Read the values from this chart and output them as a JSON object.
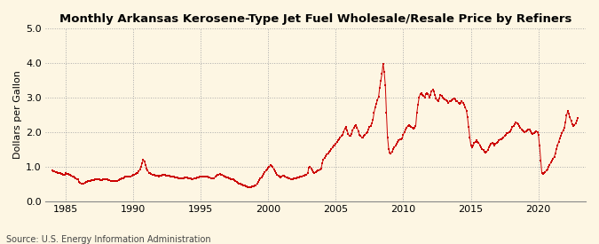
{
  "title": "Monthly Arkansas Kerosene-Type Jet Fuel Wholesale/Resale Price by Refiners",
  "ylabel": "Dollars per Gallon",
  "source": "Source: U.S. Energy Information Administration",
  "background_color": "#fdf6e3",
  "marker_color": "#cc0000",
  "line_color": "#cc0000",
  "xlim": [
    1983.5,
    2023.5
  ],
  "ylim": [
    0.0,
    5.0
  ],
  "yticks": [
    0.0,
    1.0,
    2.0,
    3.0,
    4.0,
    5.0
  ],
  "xticks": [
    1985,
    1990,
    1995,
    2000,
    2005,
    2010,
    2015,
    2020
  ],
  "data": [
    [
      1984.0,
      0.88
    ],
    [
      1984.08,
      0.86
    ],
    [
      1984.17,
      0.85
    ],
    [
      1984.25,
      0.84
    ],
    [
      1984.33,
      0.83
    ],
    [
      1984.42,
      0.82
    ],
    [
      1984.5,
      0.81
    ],
    [
      1984.58,
      0.8
    ],
    [
      1984.67,
      0.79
    ],
    [
      1984.75,
      0.78
    ],
    [
      1984.83,
      0.77
    ],
    [
      1984.92,
      0.76
    ],
    [
      1985.0,
      0.8
    ],
    [
      1985.08,
      0.79
    ],
    [
      1985.17,
      0.78
    ],
    [
      1985.25,
      0.77
    ],
    [
      1985.33,
      0.76
    ],
    [
      1985.42,
      0.74
    ],
    [
      1985.5,
      0.72
    ],
    [
      1985.58,
      0.7
    ],
    [
      1985.67,
      0.68
    ],
    [
      1985.75,
      0.66
    ],
    [
      1985.83,
      0.64
    ],
    [
      1985.92,
      0.63
    ],
    [
      1986.0,
      0.55
    ],
    [
      1986.08,
      0.52
    ],
    [
      1986.17,
      0.5
    ],
    [
      1986.25,
      0.5
    ],
    [
      1986.33,
      0.51
    ],
    [
      1986.42,
      0.53
    ],
    [
      1986.5,
      0.55
    ],
    [
      1986.58,
      0.56
    ],
    [
      1986.67,
      0.57
    ],
    [
      1986.75,
      0.58
    ],
    [
      1986.83,
      0.59
    ],
    [
      1986.92,
      0.6
    ],
    [
      1987.0,
      0.6
    ],
    [
      1987.08,
      0.61
    ],
    [
      1987.17,
      0.62
    ],
    [
      1987.25,
      0.63
    ],
    [
      1987.33,
      0.63
    ],
    [
      1987.42,
      0.62
    ],
    [
      1987.5,
      0.62
    ],
    [
      1987.58,
      0.61
    ],
    [
      1987.67,
      0.61
    ],
    [
      1987.75,
      0.62
    ],
    [
      1987.83,
      0.63
    ],
    [
      1987.92,
      0.64
    ],
    [
      1988.0,
      0.63
    ],
    [
      1988.08,
      0.62
    ],
    [
      1988.17,
      0.61
    ],
    [
      1988.25,
      0.6
    ],
    [
      1988.33,
      0.59
    ],
    [
      1988.42,
      0.58
    ],
    [
      1988.5,
      0.57
    ],
    [
      1988.58,
      0.57
    ],
    [
      1988.67,
      0.57
    ],
    [
      1988.75,
      0.58
    ],
    [
      1988.83,
      0.59
    ],
    [
      1988.92,
      0.61
    ],
    [
      1989.0,
      0.62
    ],
    [
      1989.08,
      0.64
    ],
    [
      1989.17,
      0.65
    ],
    [
      1989.25,
      0.67
    ],
    [
      1989.33,
      0.68
    ],
    [
      1989.42,
      0.7
    ],
    [
      1989.5,
      0.72
    ],
    [
      1989.58,
      0.72
    ],
    [
      1989.67,
      0.71
    ],
    [
      1989.75,
      0.7
    ],
    [
      1989.83,
      0.71
    ],
    [
      1989.92,
      0.73
    ],
    [
      1990.0,
      0.75
    ],
    [
      1990.08,
      0.76
    ],
    [
      1990.17,
      0.78
    ],
    [
      1990.25,
      0.8
    ],
    [
      1990.33,
      0.82
    ],
    [
      1990.42,
      0.87
    ],
    [
      1990.5,
      0.92
    ],
    [
      1990.58,
      1.0
    ],
    [
      1990.67,
      1.1
    ],
    [
      1990.75,
      1.2
    ],
    [
      1990.83,
      1.15
    ],
    [
      1990.92,
      1.05
    ],
    [
      1991.0,
      0.95
    ],
    [
      1991.08,
      0.88
    ],
    [
      1991.17,
      0.82
    ],
    [
      1991.25,
      0.8
    ],
    [
      1991.33,
      0.78
    ],
    [
      1991.42,
      0.77
    ],
    [
      1991.5,
      0.76
    ],
    [
      1991.58,
      0.75
    ],
    [
      1991.67,
      0.74
    ],
    [
      1991.75,
      0.73
    ],
    [
      1991.83,
      0.73
    ],
    [
      1991.92,
      0.72
    ],
    [
      1992.0,
      0.73
    ],
    [
      1992.08,
      0.74
    ],
    [
      1992.17,
      0.75
    ],
    [
      1992.25,
      0.75
    ],
    [
      1992.33,
      0.75
    ],
    [
      1992.42,
      0.74
    ],
    [
      1992.5,
      0.74
    ],
    [
      1992.58,
      0.73
    ],
    [
      1992.67,
      0.73
    ],
    [
      1992.75,
      0.72
    ],
    [
      1992.83,
      0.71
    ],
    [
      1992.92,
      0.7
    ],
    [
      1993.0,
      0.7
    ],
    [
      1993.08,
      0.69
    ],
    [
      1993.17,
      0.69
    ],
    [
      1993.25,
      0.68
    ],
    [
      1993.33,
      0.67
    ],
    [
      1993.42,
      0.66
    ],
    [
      1993.5,
      0.65
    ],
    [
      1993.58,
      0.65
    ],
    [
      1993.67,
      0.66
    ],
    [
      1993.75,
      0.67
    ],
    [
      1993.83,
      0.68
    ],
    [
      1993.92,
      0.69
    ],
    [
      1994.0,
      0.68
    ],
    [
      1994.08,
      0.67
    ],
    [
      1994.17,
      0.66
    ],
    [
      1994.25,
      0.65
    ],
    [
      1994.33,
      0.64
    ],
    [
      1994.42,
      0.64
    ],
    [
      1994.5,
      0.65
    ],
    [
      1994.58,
      0.66
    ],
    [
      1994.67,
      0.67
    ],
    [
      1994.75,
      0.68
    ],
    [
      1994.83,
      0.69
    ],
    [
      1994.92,
      0.7
    ],
    [
      1995.0,
      0.7
    ],
    [
      1995.08,
      0.71
    ],
    [
      1995.17,
      0.72
    ],
    [
      1995.25,
      0.72
    ],
    [
      1995.33,
      0.71
    ],
    [
      1995.42,
      0.7
    ],
    [
      1995.5,
      0.7
    ],
    [
      1995.58,
      0.69
    ],
    [
      1995.67,
      0.68
    ],
    [
      1995.75,
      0.67
    ],
    [
      1995.83,
      0.66
    ],
    [
      1995.92,
      0.65
    ],
    [
      1996.0,
      0.67
    ],
    [
      1996.08,
      0.7
    ],
    [
      1996.17,
      0.73
    ],
    [
      1996.25,
      0.75
    ],
    [
      1996.33,
      0.77
    ],
    [
      1996.42,
      0.78
    ],
    [
      1996.5,
      0.77
    ],
    [
      1996.58,
      0.76
    ],
    [
      1996.67,
      0.74
    ],
    [
      1996.75,
      0.72
    ],
    [
      1996.83,
      0.7
    ],
    [
      1996.92,
      0.68
    ],
    [
      1997.0,
      0.68
    ],
    [
      1997.08,
      0.67
    ],
    [
      1997.17,
      0.65
    ],
    [
      1997.25,
      0.64
    ],
    [
      1997.33,
      0.63
    ],
    [
      1997.42,
      0.62
    ],
    [
      1997.5,
      0.6
    ],
    [
      1997.58,
      0.59
    ],
    [
      1997.67,
      0.56
    ],
    [
      1997.75,
      0.53
    ],
    [
      1997.83,
      0.51
    ],
    [
      1997.92,
      0.5
    ],
    [
      1998.0,
      0.48
    ],
    [
      1998.08,
      0.47
    ],
    [
      1998.17,
      0.45
    ],
    [
      1998.25,
      0.44
    ],
    [
      1998.33,
      0.43
    ],
    [
      1998.42,
      0.42
    ],
    [
      1998.5,
      0.41
    ],
    [
      1998.58,
      0.4
    ],
    [
      1998.67,
      0.4
    ],
    [
      1998.75,
      0.41
    ],
    [
      1998.83,
      0.42
    ],
    [
      1998.92,
      0.43
    ],
    [
      1999.0,
      0.44
    ],
    [
      1999.08,
      0.46
    ],
    [
      1999.17,
      0.5
    ],
    [
      1999.25,
      0.55
    ],
    [
      1999.33,
      0.6
    ],
    [
      1999.42,
      0.65
    ],
    [
      1999.5,
      0.69
    ],
    [
      1999.58,
      0.74
    ],
    [
      1999.67,
      0.79
    ],
    [
      1999.75,
      0.84
    ],
    [
      1999.83,
      0.88
    ],
    [
      1999.92,
      0.92
    ],
    [
      2000.0,
      0.96
    ],
    [
      2000.08,
      1.0
    ],
    [
      2000.17,
      1.04
    ],
    [
      2000.25,
      1.02
    ],
    [
      2000.33,
      0.98
    ],
    [
      2000.42,
      0.92
    ],
    [
      2000.5,
      0.86
    ],
    [
      2000.58,
      0.8
    ],
    [
      2000.67,
      0.76
    ],
    [
      2000.75,
      0.73
    ],
    [
      2000.83,
      0.71
    ],
    [
      2000.92,
      0.69
    ],
    [
      2001.0,
      0.72
    ],
    [
      2001.08,
      0.74
    ],
    [
      2001.17,
      0.73
    ],
    [
      2001.25,
      0.71
    ],
    [
      2001.33,
      0.69
    ],
    [
      2001.42,
      0.68
    ],
    [
      2001.5,
      0.67
    ],
    [
      2001.58,
      0.65
    ],
    [
      2001.67,
      0.63
    ],
    [
      2001.75,
      0.62
    ],
    [
      2001.83,
      0.63
    ],
    [
      2001.92,
      0.65
    ],
    [
      2002.0,
      0.66
    ],
    [
      2002.08,
      0.67
    ],
    [
      2002.17,
      0.68
    ],
    [
      2002.25,
      0.69
    ],
    [
      2002.33,
      0.7
    ],
    [
      2002.42,
      0.71
    ],
    [
      2002.5,
      0.72
    ],
    [
      2002.58,
      0.73
    ],
    [
      2002.67,
      0.74
    ],
    [
      2002.75,
      0.75
    ],
    [
      2002.83,
      0.77
    ],
    [
      2002.92,
      0.8
    ],
    [
      2003.0,
      0.97
    ],
    [
      2003.08,
      1.0
    ],
    [
      2003.17,
      0.95
    ],
    [
      2003.25,
      0.88
    ],
    [
      2003.33,
      0.84
    ],
    [
      2003.42,
      0.82
    ],
    [
      2003.5,
      0.84
    ],
    [
      2003.58,
      0.86
    ],
    [
      2003.67,
      0.88
    ],
    [
      2003.75,
      0.9
    ],
    [
      2003.83,
      0.92
    ],
    [
      2003.92,
      0.95
    ],
    [
      2004.0,
      1.1
    ],
    [
      2004.08,
      1.2
    ],
    [
      2004.17,
      1.25
    ],
    [
      2004.25,
      1.3
    ],
    [
      2004.33,
      1.35
    ],
    [
      2004.42,
      1.38
    ],
    [
      2004.5,
      1.42
    ],
    [
      2004.58,
      1.45
    ],
    [
      2004.67,
      1.5
    ],
    [
      2004.75,
      1.55
    ],
    [
      2004.83,
      1.6
    ],
    [
      2004.92,
      1.62
    ],
    [
      2005.0,
      1.65
    ],
    [
      2005.08,
      1.7
    ],
    [
      2005.17,
      1.75
    ],
    [
      2005.25,
      1.8
    ],
    [
      2005.33,
      1.84
    ],
    [
      2005.42,
      1.88
    ],
    [
      2005.5,
      1.92
    ],
    [
      2005.58,
      2.0
    ],
    [
      2005.67,
      2.1
    ],
    [
      2005.75,
      2.15
    ],
    [
      2005.83,
      2.05
    ],
    [
      2005.92,
      1.95
    ],
    [
      2006.0,
      1.88
    ],
    [
      2006.08,
      1.9
    ],
    [
      2006.17,
      1.95
    ],
    [
      2006.25,
      2.05
    ],
    [
      2006.33,
      2.12
    ],
    [
      2006.42,
      2.18
    ],
    [
      2006.5,
      2.2
    ],
    [
      2006.58,
      2.12
    ],
    [
      2006.67,
      2.02
    ],
    [
      2006.75,
      1.92
    ],
    [
      2006.83,
      1.88
    ],
    [
      2006.92,
      1.85
    ],
    [
      2007.0,
      1.85
    ],
    [
      2007.08,
      1.88
    ],
    [
      2007.17,
      1.92
    ],
    [
      2007.25,
      1.96
    ],
    [
      2007.33,
      2.0
    ],
    [
      2007.42,
      2.08
    ],
    [
      2007.5,
      2.14
    ],
    [
      2007.58,
      2.18
    ],
    [
      2007.67,
      2.25
    ],
    [
      2007.75,
      2.35
    ],
    [
      2007.83,
      2.55
    ],
    [
      2007.92,
      2.72
    ],
    [
      2008.0,
      2.82
    ],
    [
      2008.08,
      2.92
    ],
    [
      2008.17,
      3.02
    ],
    [
      2008.25,
      3.28
    ],
    [
      2008.33,
      3.48
    ],
    [
      2008.42,
      3.68
    ],
    [
      2008.5,
      3.98
    ],
    [
      2008.58,
      3.75
    ],
    [
      2008.67,
      3.35
    ],
    [
      2008.75,
      2.55
    ],
    [
      2008.83,
      1.85
    ],
    [
      2008.92,
      1.5
    ],
    [
      2009.0,
      1.4
    ],
    [
      2009.08,
      1.38
    ],
    [
      2009.17,
      1.42
    ],
    [
      2009.25,
      1.5
    ],
    [
      2009.33,
      1.55
    ],
    [
      2009.42,
      1.6
    ],
    [
      2009.5,
      1.65
    ],
    [
      2009.58,
      1.7
    ],
    [
      2009.67,
      1.75
    ],
    [
      2009.75,
      1.78
    ],
    [
      2009.83,
      1.8
    ],
    [
      2009.92,
      1.82
    ],
    [
      2010.0,
      1.92
    ],
    [
      2010.08,
      2.0
    ],
    [
      2010.17,
      2.08
    ],
    [
      2010.25,
      2.12
    ],
    [
      2010.33,
      2.18
    ],
    [
      2010.42,
      2.2
    ],
    [
      2010.5,
      2.18
    ],
    [
      2010.58,
      2.15
    ],
    [
      2010.67,
      2.12
    ],
    [
      2010.75,
      2.1
    ],
    [
      2010.83,
      2.12
    ],
    [
      2010.92,
      2.18
    ],
    [
      2011.0,
      2.55
    ],
    [
      2011.08,
      2.78
    ],
    [
      2011.17,
      3.0
    ],
    [
      2011.25,
      3.1
    ],
    [
      2011.33,
      3.12
    ],
    [
      2011.42,
      3.08
    ],
    [
      2011.5,
      3.05
    ],
    [
      2011.58,
      3.0
    ],
    [
      2011.67,
      3.1
    ],
    [
      2011.75,
      3.12
    ],
    [
      2011.83,
      3.1
    ],
    [
      2011.92,
      3.0
    ],
    [
      2012.0,
      3.08
    ],
    [
      2012.08,
      3.18
    ],
    [
      2012.17,
      3.22
    ],
    [
      2012.25,
      3.18
    ],
    [
      2012.33,
      3.08
    ],
    [
      2012.42,
      2.98
    ],
    [
      2012.5,
      2.92
    ],
    [
      2012.58,
      2.9
    ],
    [
      2012.67,
      2.98
    ],
    [
      2012.75,
      3.08
    ],
    [
      2012.83,
      3.05
    ],
    [
      2012.92,
      3.0
    ],
    [
      2013.0,
      2.98
    ],
    [
      2013.08,
      2.95
    ],
    [
      2013.17,
      2.92
    ],
    [
      2013.25,
      2.88
    ],
    [
      2013.33,
      2.85
    ],
    [
      2013.42,
      2.88
    ],
    [
      2013.5,
      2.9
    ],
    [
      2013.58,
      2.92
    ],
    [
      2013.67,
      2.95
    ],
    [
      2013.75,
      2.98
    ],
    [
      2013.83,
      2.95
    ],
    [
      2013.92,
      2.9
    ],
    [
      2014.0,
      2.88
    ],
    [
      2014.08,
      2.85
    ],
    [
      2014.17,
      2.82
    ],
    [
      2014.25,
      2.85
    ],
    [
      2014.33,
      2.88
    ],
    [
      2014.42,
      2.85
    ],
    [
      2014.5,
      2.8
    ],
    [
      2014.58,
      2.72
    ],
    [
      2014.67,
      2.62
    ],
    [
      2014.75,
      2.42
    ],
    [
      2014.83,
      2.15
    ],
    [
      2014.92,
      1.85
    ],
    [
      2015.0,
      1.62
    ],
    [
      2015.08,
      1.55
    ],
    [
      2015.17,
      1.6
    ],
    [
      2015.25,
      1.68
    ],
    [
      2015.33,
      1.72
    ],
    [
      2015.42,
      1.75
    ],
    [
      2015.5,
      1.72
    ],
    [
      2015.58,
      1.68
    ],
    [
      2015.67,
      1.62
    ],
    [
      2015.75,
      1.55
    ],
    [
      2015.83,
      1.5
    ],
    [
      2015.92,
      1.48
    ],
    [
      2016.0,
      1.42
    ],
    [
      2016.08,
      1.4
    ],
    [
      2016.17,
      1.42
    ],
    [
      2016.25,
      1.48
    ],
    [
      2016.33,
      1.55
    ],
    [
      2016.42,
      1.6
    ],
    [
      2016.5,
      1.65
    ],
    [
      2016.58,
      1.68
    ],
    [
      2016.67,
      1.65
    ],
    [
      2016.75,
      1.62
    ],
    [
      2016.83,
      1.65
    ],
    [
      2016.92,
      1.68
    ],
    [
      2017.0,
      1.72
    ],
    [
      2017.08,
      1.75
    ],
    [
      2017.17,
      1.78
    ],
    [
      2017.25,
      1.8
    ],
    [
      2017.33,
      1.82
    ],
    [
      2017.42,
      1.85
    ],
    [
      2017.5,
      1.88
    ],
    [
      2017.58,
      1.92
    ],
    [
      2017.67,
      1.96
    ],
    [
      2017.75,
      1.98
    ],
    [
      2017.83,
      2.0
    ],
    [
      2017.92,
      2.02
    ],
    [
      2018.0,
      2.08
    ],
    [
      2018.08,
      2.14
    ],
    [
      2018.17,
      2.18
    ],
    [
      2018.25,
      2.22
    ],
    [
      2018.33,
      2.28
    ],
    [
      2018.42,
      2.25
    ],
    [
      2018.5,
      2.22
    ],
    [
      2018.58,
      2.18
    ],
    [
      2018.67,
      2.12
    ],
    [
      2018.75,
      2.08
    ],
    [
      2018.83,
      2.05
    ],
    [
      2018.92,
      2.02
    ],
    [
      2019.0,
      2.0
    ],
    [
      2019.08,
      2.02
    ],
    [
      2019.17,
      2.05
    ],
    [
      2019.25,
      2.08
    ],
    [
      2019.33,
      2.06
    ],
    [
      2019.42,
      2.02
    ],
    [
      2019.5,
      1.98
    ],
    [
      2019.58,
      1.95
    ],
    [
      2019.67,
      1.98
    ],
    [
      2019.75,
      2.0
    ],
    [
      2019.83,
      2.02
    ],
    [
      2019.92,
      2.0
    ],
    [
      2020.0,
      1.92
    ],
    [
      2020.08,
      1.62
    ],
    [
      2020.17,
      1.18
    ],
    [
      2020.25,
      0.82
    ],
    [
      2020.33,
      0.78
    ],
    [
      2020.42,
      0.8
    ],
    [
      2020.5,
      0.84
    ],
    [
      2020.58,
      0.88
    ],
    [
      2020.67,
      0.92
    ],
    [
      2020.75,
      0.98
    ],
    [
      2020.83,
      1.05
    ],
    [
      2020.92,
      1.12
    ],
    [
      2021.0,
      1.18
    ],
    [
      2021.08,
      1.22
    ],
    [
      2021.17,
      1.28
    ],
    [
      2021.25,
      1.38
    ],
    [
      2021.33,
      1.5
    ],
    [
      2021.42,
      1.62
    ],
    [
      2021.5,
      1.72
    ],
    [
      2021.58,
      1.82
    ],
    [
      2021.67,
      1.9
    ],
    [
      2021.75,
      1.98
    ],
    [
      2021.83,
      2.05
    ],
    [
      2021.92,
      2.12
    ],
    [
      2022.0,
      2.28
    ],
    [
      2022.08,
      2.48
    ],
    [
      2022.17,
      2.6
    ],
    [
      2022.25,
      2.52
    ],
    [
      2022.33,
      2.42
    ],
    [
      2022.42,
      2.32
    ],
    [
      2022.5,
      2.22
    ],
    [
      2022.58,
      2.18
    ],
    [
      2022.67,
      2.2
    ],
    [
      2022.75,
      2.25
    ],
    [
      2022.83,
      2.32
    ],
    [
      2022.92,
      2.4
    ]
  ]
}
